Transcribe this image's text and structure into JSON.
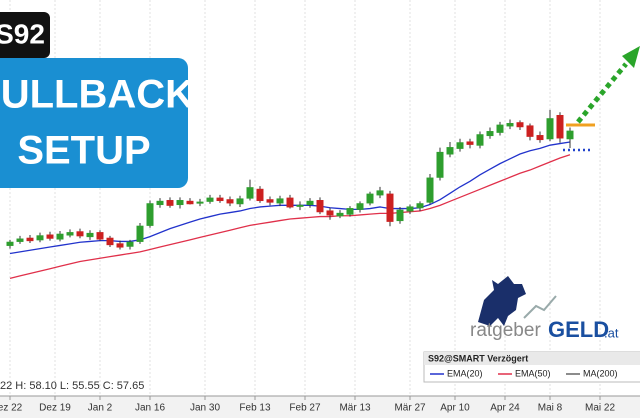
{
  "chart_data": {
    "type": "candlestick",
    "symbol_badge": "S92",
    "banner": [
      "PULLBACK",
      "SETUP"
    ],
    "status": "22 H: 58.10 L: 55.55 C: 57.65",
    "logo": {
      "left": "ratgeber",
      "right": "GELD",
      "suffix": ".at"
    },
    "legend_title": "S92@SMART Verzögert",
    "legend_extra": [
      "MA(200)"
    ],
    "up_color": "#2e9e2e",
    "down_color": "#cc2020",
    "xlim": [
      -1,
      63
    ],
    "ylim": [
      26,
      74
    ],
    "xticks": [
      {
        "value": 0,
        "label": "ez 22"
      },
      {
        "value": 4.5,
        "label": "Dez 19"
      },
      {
        "value": 9,
        "label": "Jan 2"
      },
      {
        "value": 14,
        "label": "Jan 16"
      },
      {
        "value": 19.5,
        "label": "Jan 30"
      },
      {
        "value": 24.5,
        "label": "Feb 13"
      },
      {
        "value": 29.5,
        "label": "Feb 27"
      },
      {
        "value": 34.5,
        "label": "Mär 13"
      },
      {
        "value": 40,
        "label": "Mär 27"
      },
      {
        "value": 44.5,
        "label": "Apr 10"
      },
      {
        "value": 49.5,
        "label": "Apr 24"
      },
      {
        "value": 54,
        "label": "Mai 8"
      },
      {
        "value": 59,
        "label": "Mai 22"
      }
    ],
    "open": [
      43.4,
      43.9,
      44.3,
      44.1,
      44.7,
      44.2,
      44.7,
      45.1,
      44.5,
      45.0,
      44.3,
      43.6,
      43.3,
      43.9,
      45.9,
      48.5,
      49.0,
      48.5,
      48.9,
      48.7,
      48.9,
      49.3,
      49.1,
      48.6,
      49.3,
      50.4,
      49.1,
      48.7,
      49.3,
      48.3,
      48.5,
      49.0,
      47.7,
      47.1,
      47.3,
      47.9,
      48.7,
      49.7,
      49.8,
      46.5,
      47.7,
      48.1,
      48.8,
      51.9,
      54.8,
      55.5,
      56.3,
      55.9,
      57.1,
      57.5,
      58.3,
      58.7,
      58.3,
      57.1,
      56.7,
      59.6,
      56.7
    ],
    "high": [
      44.1,
      44.6,
      44.7,
      45.0,
      45.1,
      45.2,
      45.4,
      45.5,
      45.3,
      45.3,
      44.6,
      44.0,
      44.1,
      46.2,
      49.0,
      49.3,
      49.4,
      49.4,
      49.3,
      49.2,
      49.7,
      49.7,
      49.5,
      49.6,
      51.6,
      50.8,
      49.5,
      49.6,
      49.7,
      48.9,
      49.3,
      49.4,
      48.1,
      47.8,
      48.3,
      48.9,
      50.1,
      50.7,
      50.2,
      48.2,
      48.5,
      48.9,
      52.3,
      55.6,
      56.3,
      56.7,
      56.7,
      57.6,
      58.1,
      58.8,
      59.1,
      59.0,
      58.6,
      57.6,
      60.3,
      60.0,
      58.1
    ],
    "low": [
      43.0,
      43.6,
      43.7,
      43.8,
      44.0,
      43.9,
      44.4,
      44.3,
      44.1,
      44.0,
      43.2,
      42.9,
      42.9,
      43.6,
      45.6,
      48.1,
      48.1,
      48.0,
      48.5,
      48.3,
      48.6,
      48.7,
      48.3,
      48.2,
      49.0,
      48.7,
      48.4,
      48.3,
      48.0,
      47.8,
      48.1,
      47.3,
      46.6,
      46.8,
      47.0,
      47.5,
      48.4,
      49.3,
      45.8,
      46.1,
      47.3,
      47.7,
      48.5,
      51.5,
      54.4,
      55.1,
      55.5,
      55.5,
      56.7,
      57.1,
      57.9,
      57.8,
      56.5,
      56.2,
      56.4,
      56.2,
      55.55
    ],
    "close": [
      43.8,
      44.2,
      44.0,
      44.6,
      44.3,
      44.8,
      45.0,
      44.6,
      44.9,
      44.2,
      43.5,
      43.2,
      43.8,
      45.8,
      48.6,
      48.9,
      48.4,
      49.0,
      48.6,
      48.8,
      49.3,
      49.0,
      48.7,
      49.2,
      50.6,
      49.0,
      48.8,
      49.2,
      48.2,
      48.4,
      48.9,
      47.6,
      47.2,
      47.4,
      48.0,
      48.6,
      49.8,
      50.2,
      46.4,
      47.8,
      48.2,
      48.6,
      51.8,
      55.0,
      55.6,
      56.2,
      56.0,
      57.2,
      57.6,
      58.4,
      58.6,
      58.2,
      57.0,
      56.6,
      59.2,
      56.8,
      57.65
    ],
    "series": [
      {
        "name": "EMA(20)",
        "color": "#2233cc",
        "values": [
          42.4,
          42.6,
          42.8,
          43.0,
          43.2,
          43.4,
          43.6,
          43.8,
          43.9,
          44.0,
          44.0,
          43.9,
          43.9,
          44.1,
          44.5,
          45.0,
          45.5,
          45.9,
          46.3,
          46.7,
          47.0,
          47.3,
          47.5,
          47.7,
          48.0,
          48.2,
          48.3,
          48.4,
          48.4,
          48.4,
          48.4,
          48.3,
          48.1,
          48.0,
          47.9,
          47.9,
          48.0,
          48.2,
          48.0,
          48.0,
          48.0,
          48.1,
          48.5,
          49.1,
          49.9,
          50.7,
          51.4,
          52.2,
          52.9,
          53.6,
          54.2,
          54.8,
          55.2,
          55.5,
          55.9,
          56.1,
          56.3
        ]
      },
      {
        "name": "EMA(50)",
        "color": "#e0304a",
        "values": [
          39.3,
          39.6,
          39.9,
          40.2,
          40.5,
          40.8,
          41.1,
          41.4,
          41.6,
          41.8,
          42.0,
          42.2,
          42.4,
          42.6,
          42.9,
          43.2,
          43.5,
          43.8,
          44.1,
          44.4,
          44.7,
          45.0,
          45.3,
          45.6,
          45.9,
          46.1,
          46.3,
          46.5,
          46.7,
          46.8,
          46.9,
          47.0,
          47.0,
          47.1,
          47.1,
          47.2,
          47.3,
          47.4,
          47.4,
          47.5,
          47.6,
          47.7,
          48.0,
          48.4,
          48.9,
          49.4,
          49.9,
          50.4,
          50.9,
          51.4,
          51.9,
          52.4,
          52.8,
          53.3,
          53.8,
          54.3,
          54.7
        ]
      }
    ]
  }
}
